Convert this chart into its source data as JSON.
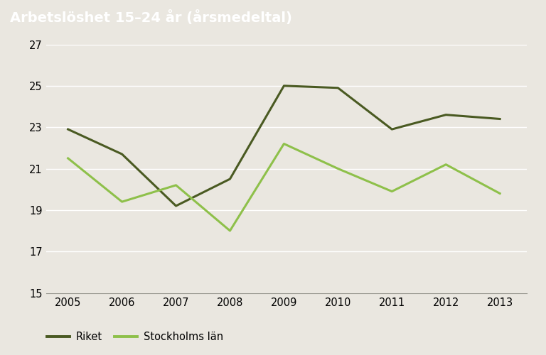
{
  "title": "Arbetslöshet 15–24 år (årsmedeltal)",
  "title_bg_color": "#8c8578",
  "plot_bg_color": "#eae7e0",
  "fig_bg_color": "#eae7e0",
  "years": [
    2005,
    2006,
    2007,
    2008,
    2009,
    2010,
    2011,
    2012,
    2013
  ],
  "riket": [
    22.9,
    21.7,
    19.2,
    20.5,
    25.0,
    24.9,
    22.9,
    23.6,
    23.4
  ],
  "stockholm": [
    21.5,
    19.4,
    20.2,
    18.0,
    22.2,
    21.0,
    19.9,
    21.2,
    19.8
  ],
  "riket_color": "#4a5a22",
  "stockholm_color": "#8ec04a",
  "ylim": [
    15,
    27
  ],
  "yticks": [
    15,
    17,
    19,
    21,
    23,
    25,
    27
  ],
  "legend_riket": "Riket",
  "legend_stockholm": "Stockholms län",
  "grid_color": "#ffffff",
  "line_width": 2.2,
  "title_fontsize": 14,
  "tick_fontsize": 10.5,
  "legend_fontsize": 10.5,
  "title_text_color": "#ffffff"
}
